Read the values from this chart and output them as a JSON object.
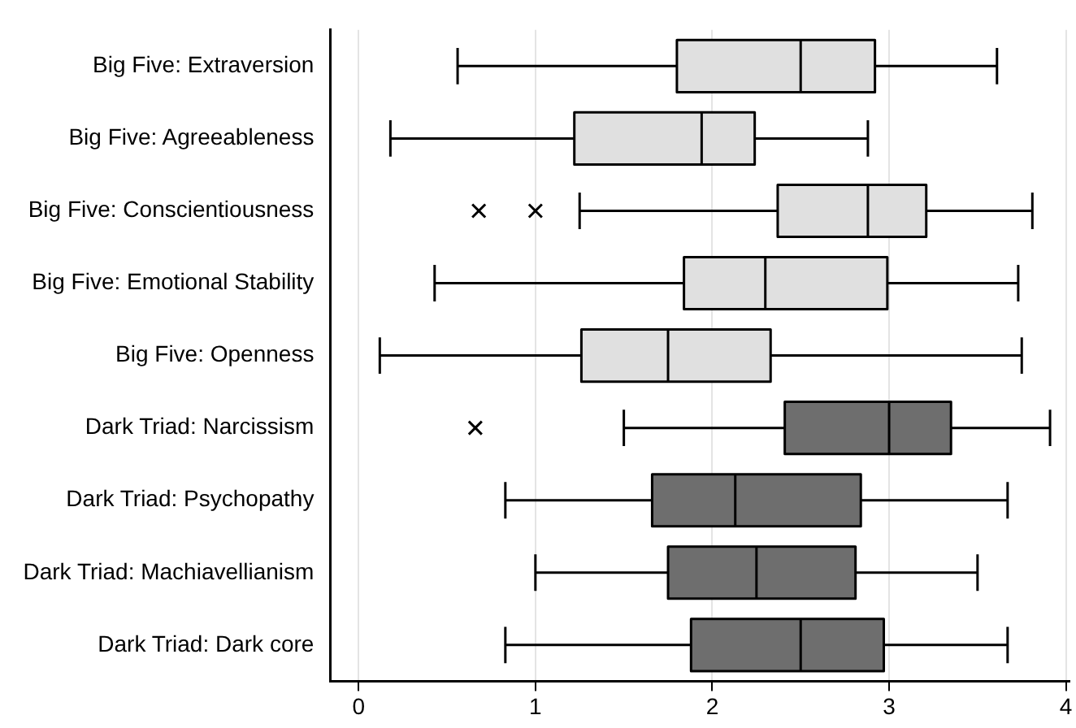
{
  "chart_data": {
    "type": "box",
    "orientation": "horizontal",
    "categories": [
      "Big Five: Extraversion",
      "Big Five: Agreeableness",
      "Big Five: Conscientiousness",
      "Big Five: Emotional Stability",
      "Big Five: Openness",
      "Dark Triad: Narcissism",
      "Dark Triad: Psychopathy",
      "Dark Triad: Machiavellianism",
      "Dark Triad: Dark core"
    ],
    "boxes": [
      {
        "low": 0.56,
        "q1": 1.8,
        "median": 2.5,
        "q3": 2.92,
        "high": 3.61
      },
      {
        "low": 0.18,
        "q1": 1.22,
        "median": 1.94,
        "q3": 2.24,
        "high": 2.88
      },
      {
        "low": 1.25,
        "q1": 2.37,
        "median": 2.88,
        "q3": 3.21,
        "high": 3.81,
        "outliers": [
          0.68,
          1.0
        ]
      },
      {
        "low": 0.43,
        "q1": 1.84,
        "median": 2.3,
        "q3": 2.99,
        "high": 3.73
      },
      {
        "low": 0.12,
        "q1": 1.26,
        "median": 1.75,
        "q3": 2.33,
        "high": 3.75
      },
      {
        "low": 1.5,
        "q1": 2.41,
        "median": 3.0,
        "q3": 3.35,
        "high": 3.91,
        "outliers": [
          0.66
        ]
      },
      {
        "low": 0.83,
        "q1": 1.66,
        "median": 2.13,
        "q3": 2.84,
        "high": 3.67
      },
      {
        "low": 1.0,
        "q1": 1.75,
        "median": 2.25,
        "q3": 2.81,
        "high": 3.5
      },
      {
        "low": 0.83,
        "q1": 1.88,
        "median": 2.5,
        "q3": 2.97,
        "high": 3.67
      }
    ],
    "colors": [
      "#e0e0e0",
      "#e0e0e0",
      "#e0e0e0",
      "#e0e0e0",
      "#e0e0e0",
      "#6e6e6e",
      "#6e6e6e",
      "#6e6e6e",
      "#6e6e6e"
    ],
    "xlim": [
      -0.16,
      4.02
    ],
    "xticks": [
      0,
      1,
      2,
      3,
      4
    ],
    "grid": "x",
    "marker": "cross"
  }
}
